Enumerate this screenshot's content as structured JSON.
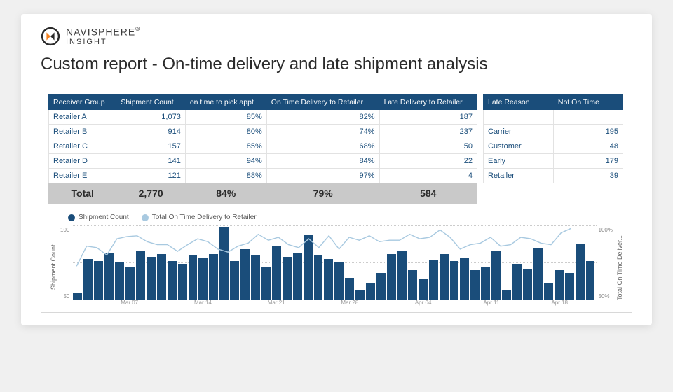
{
  "brand": {
    "name_top": "NAVISPHERE",
    "name_sub": "INSIGHT",
    "registered": "®",
    "mark_colors": {
      "ring": "#2b2b2b",
      "accent": "#f58220",
      "dark": "#2b2b2b"
    }
  },
  "report": {
    "title": "Custom report - On-time delivery and late shipment analysis"
  },
  "main_table": {
    "columns": [
      "Receiver Group",
      "Shipment Count",
      "on time to pick appt",
      "On Time Delivery to Retailer",
      "Late Delivery to Retailer"
    ],
    "rows": [
      [
        "Retailer A",
        "1,073",
        "85%",
        "82%",
        "187"
      ],
      [
        "Retailer B",
        "914",
        "80%",
        "74%",
        "237"
      ],
      [
        "Retailer C",
        "157",
        "85%",
        "68%",
        "50"
      ],
      [
        "Retailer D",
        "141",
        "94%",
        "84%",
        "22"
      ],
      [
        "Retailer E",
        "121",
        "88%",
        "97%",
        "4"
      ]
    ],
    "total_label": "Total",
    "totals": [
      "2,770",
      "84%",
      "79%",
      "584"
    ],
    "col_align": [
      "left",
      "right",
      "right",
      "right",
      "right"
    ],
    "header_bg": "#1a4d7a",
    "header_fg": "#ffffff",
    "cell_fg": "#1a4d7a",
    "border_color": "#e2e2e2",
    "total_bg": "#c9c9c9",
    "total_fg": "#2b2b2b"
  },
  "side_table": {
    "columns": [
      "Late Reason",
      "Not On Time"
    ],
    "rows": [
      [
        "",
        ""
      ],
      [
        "Carrier",
        "195"
      ],
      [
        "Customer",
        "48"
      ],
      [
        "Early",
        "179"
      ],
      [
        "Retailer",
        "39"
      ]
    ],
    "col_align": [
      "left",
      "right"
    ],
    "header_bg": "#1a4d7a",
    "header_fg": "#ffffff",
    "cell_fg": "#1a4d7a",
    "divider_color": "#6ba3cc"
  },
  "chart": {
    "type": "bar+line",
    "legend": [
      {
        "label": "Shipment Count",
        "color": "#1a4d7a",
        "shape": "circle"
      },
      {
        "label": "Total On Time Delivery to Retailer",
        "color": "#a8c9e0",
        "shape": "circle"
      }
    ],
    "y_left": {
      "label": "Shipment Count",
      "min": 0,
      "max": 100,
      "ticks": [
        100,
        50
      ],
      "fontsize": 9
    },
    "y_right": {
      "label": "Total On Time Deliver...",
      "min": 0,
      "max": 100,
      "ticks": [
        "100%",
        "50%"
      ],
      "fontsize": 9
    },
    "x_ticks": [
      {
        "pos": 0.11,
        "label": "Mar 07"
      },
      {
        "pos": 0.25,
        "label": "Mar 14"
      },
      {
        "pos": 0.39,
        "label": "Mar 21"
      },
      {
        "pos": 0.53,
        "label": "Mar 28"
      },
      {
        "pos": 0.67,
        "label": "Apr 04"
      },
      {
        "pos": 0.8,
        "label": "Apr 11"
      },
      {
        "pos": 0.93,
        "label": "Apr 18"
      }
    ],
    "bar_color": "#1a4d7a",
    "bar_values": [
      10,
      55,
      52,
      64,
      50,
      44,
      66,
      58,
      62,
      52,
      48,
      60,
      56,
      62,
      98,
      52,
      68,
      60,
      44,
      72,
      58,
      64,
      88,
      60,
      55,
      50,
      30,
      14,
      22,
      36,
      62,
      66,
      40,
      28,
      54,
      62,
      52,
      56,
      40,
      44,
      66,
      14,
      48,
      42,
      70,
      22,
      40,
      36,
      76,
      52
    ],
    "line_color": "#a8c9e0",
    "line_width": 1.4,
    "line_values": [
      45,
      72,
      70,
      60,
      82,
      85,
      86,
      78,
      74,
      74,
      65,
      74,
      82,
      78,
      68,
      64,
      72,
      76,
      88,
      80,
      84,
      74,
      70,
      82,
      70,
      86,
      68,
      84,
      80,
      86,
      78,
      80,
      80,
      88,
      82,
      84,
      94,
      84,
      68,
      74,
      76,
      84,
      72,
      74,
      84,
      82,
      76,
      74,
      90,
      96
    ],
    "grid_color": "#cccccc",
    "background_color": "#ffffff"
  }
}
